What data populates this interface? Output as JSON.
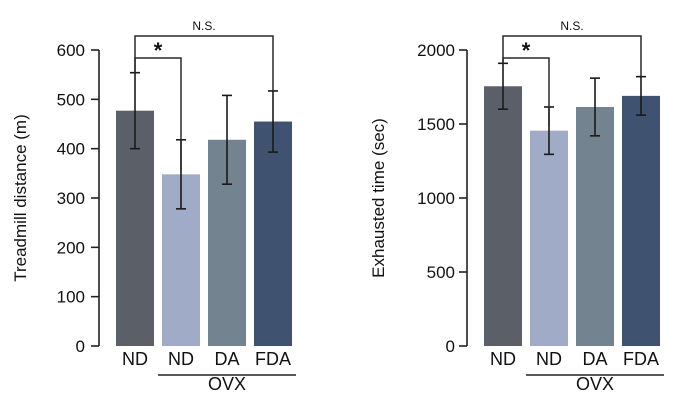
{
  "chart_data": [
    {
      "type": "bar",
      "ylabel": "Treadmill distance (m)",
      "ylim": [
        0,
        600
      ],
      "yticks": [
        0,
        100,
        200,
        300,
        400,
        500,
        600
      ],
      "categories": [
        "ND",
        "ND",
        "DA",
        "FDA"
      ],
      "group_label": "OVX",
      "values": [
        477,
        348,
        418,
        455
      ],
      "errors": [
        77,
        70,
        90,
        62
      ],
      "colors": [
        "#5a5f68",
        "#a0abc7",
        "#73838f",
        "#3f5270"
      ],
      "significance": [
        {
          "from": 0,
          "to": 1,
          "label": "*"
        },
        {
          "from": 0,
          "to": 3,
          "label": "N.S."
        }
      ],
      "grid": false
    },
    {
      "type": "bar",
      "ylabel": "Exhausted time (sec)",
      "ylim": [
        0,
        2000
      ],
      "yticks": [
        0,
        500,
        1000,
        1500,
        2000
      ],
      "categories": [
        "ND",
        "ND",
        "DA",
        "FDA"
      ],
      "group_label": "OVX",
      "values": [
        1755,
        1455,
        1615,
        1690
      ],
      "errors": [
        155,
        160,
        195,
        130
      ],
      "colors": [
        "#5a5f68",
        "#a0abc7",
        "#73838f",
        "#3f5270"
      ],
      "significance": [
        {
          "from": 0,
          "to": 1,
          "label": "*"
        },
        {
          "from": 0,
          "to": 3,
          "label": "N.S."
        }
      ],
      "grid": false
    }
  ]
}
